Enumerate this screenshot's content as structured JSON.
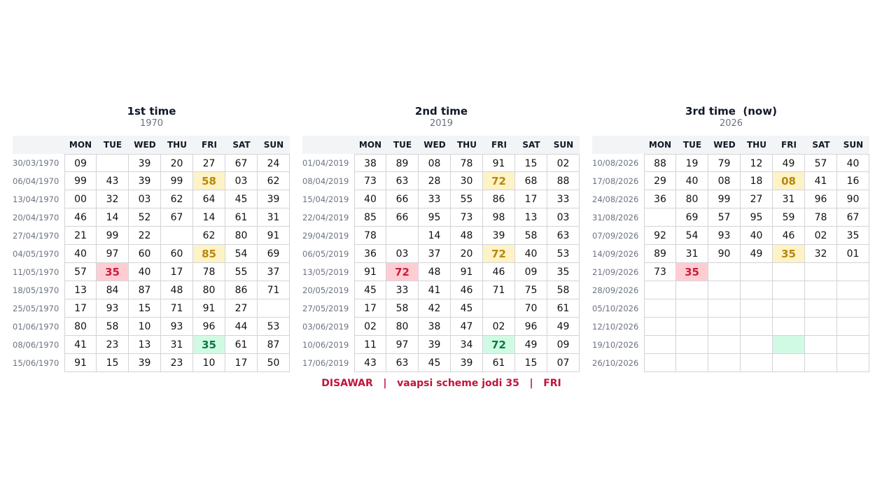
{
  "days": [
    "MON",
    "TUE",
    "WED",
    "THU",
    "FRI",
    "SAT",
    "SUN"
  ],
  "tables": [
    {
      "title": "1st time",
      "subtitle": "1970",
      "rows": [
        {
          "date": "30/03/1970",
          "cells": [
            "09",
            null,
            "39",
            "20",
            "27",
            "67",
            "24"
          ]
        },
        {
          "date": "06/04/1970",
          "cells": [
            "99",
            "43",
            "39",
            "99",
            {
              "text": "58",
              "highlight": "yellow"
            },
            "03",
            "62"
          ]
        },
        {
          "date": "13/04/1970",
          "cells": [
            "00",
            "32",
            "03",
            "62",
            "64",
            "45",
            "39"
          ]
        },
        {
          "date": "20/04/1970",
          "cells": [
            "46",
            "14",
            "52",
            "67",
            "14",
            "61",
            "31"
          ]
        },
        {
          "date": "27/04/1970",
          "cells": [
            "21",
            "99",
            "22",
            null,
            "62",
            "80",
            "91"
          ]
        },
        {
          "date": "04/05/1970",
          "cells": [
            "40",
            "97",
            "60",
            "60",
            {
              "text": "85",
              "highlight": "yellow"
            },
            "54",
            "69"
          ]
        },
        {
          "date": "11/05/1970",
          "cells": [
            "57",
            {
              "text": "35",
              "highlight": "red"
            },
            "40",
            "17",
            "78",
            "55",
            "37"
          ]
        },
        {
          "date": "18/05/1970",
          "cells": [
            "13",
            "84",
            "87",
            "48",
            "80",
            "86",
            "71"
          ]
        },
        {
          "date": "25/05/1970",
          "cells": [
            "17",
            "93",
            "15",
            "71",
            "91",
            "27",
            null
          ]
        },
        {
          "date": "01/06/1970",
          "cells": [
            "80",
            "58",
            "10",
            "93",
            "96",
            "44",
            "53"
          ]
        },
        {
          "date": "08/06/1970",
          "cells": [
            "41",
            "23",
            "13",
            "31",
            {
              "text": "35",
              "highlight": "green"
            },
            "61",
            "87"
          ]
        },
        {
          "date": "15/06/1970",
          "cells": [
            "91",
            "15",
            "39",
            "23",
            "10",
            "17",
            "50"
          ]
        }
      ]
    },
    {
      "title": "2nd time",
      "subtitle": "2019",
      "rows": [
        {
          "date": "01/04/2019",
          "cells": [
            "38",
            "89",
            "08",
            "78",
            "91",
            "15",
            "02"
          ]
        },
        {
          "date": "08/04/2019",
          "cells": [
            "73",
            "63",
            "28",
            "30",
            {
              "text": "72",
              "highlight": "yellow"
            },
            "68",
            "88"
          ]
        },
        {
          "date": "15/04/2019",
          "cells": [
            "40",
            "66",
            "33",
            "55",
            "86",
            "17",
            "33"
          ]
        },
        {
          "date": "22/04/2019",
          "cells": [
            "85",
            "66",
            "95",
            "73",
            "98",
            "13",
            "03"
          ]
        },
        {
          "date": "29/04/2019",
          "cells": [
            "78",
            null,
            "14",
            "48",
            "39",
            "58",
            "63"
          ]
        },
        {
          "date": "06/05/2019",
          "cells": [
            "36",
            "03",
            "37",
            "20",
            {
              "text": "72",
              "highlight": "yellow"
            },
            "40",
            "53"
          ]
        },
        {
          "date": "13/05/2019",
          "cells": [
            "91",
            {
              "text": "72",
              "highlight": "red"
            },
            "48",
            "91",
            "46",
            "09",
            "35"
          ]
        },
        {
          "date": "20/05/2019",
          "cells": [
            "45",
            "33",
            "41",
            "46",
            "71",
            "75",
            "58"
          ]
        },
        {
          "date": "27/05/2019",
          "cells": [
            "17",
            "58",
            "42",
            "45",
            null,
            "70",
            "61"
          ]
        },
        {
          "date": "03/06/2019",
          "cells": [
            "02",
            "80",
            "38",
            "47",
            "02",
            "96",
            "49"
          ]
        },
        {
          "date": "10/06/2019",
          "cells": [
            "11",
            "97",
            "39",
            "34",
            {
              "text": "72",
              "highlight": "green"
            },
            "49",
            "09"
          ]
        },
        {
          "date": "17/06/2019",
          "cells": [
            "43",
            "63",
            "45",
            "39",
            "61",
            "15",
            "07"
          ]
        }
      ]
    },
    {
      "title": "3rd time  (now)",
      "subtitle": "2026",
      "rows": [
        {
          "date": "10/08/2026",
          "cells": [
            "88",
            "19",
            "79",
            "12",
            "49",
            "57",
            "40"
          ]
        },
        {
          "date": "17/08/2026",
          "cells": [
            "29",
            "40",
            "08",
            "18",
            {
              "text": "08",
              "highlight": "yellow"
            },
            "41",
            "16"
          ]
        },
        {
          "date": "24/08/2026",
          "cells": [
            "36",
            "80",
            "99",
            "27",
            "31",
            "96",
            "90"
          ]
        },
        {
          "date": "31/08/2026",
          "cells": [
            null,
            "69",
            "57",
            "95",
            "59",
            "78",
            "67"
          ]
        },
        {
          "date": "07/09/2026",
          "cells": [
            "92",
            "54",
            "93",
            "40",
            "46",
            "02",
            "35"
          ]
        },
        {
          "date": "14/09/2026",
          "cells": [
            "89",
            "31",
            "90",
            "49",
            {
              "text": "35",
              "highlight": "yellow"
            },
            "32",
            "01"
          ]
        },
        {
          "date": "21/09/2026",
          "cells": [
            "73",
            {
              "text": "35",
              "highlight": "red"
            },
            null,
            null,
            null,
            null,
            null
          ]
        },
        {
          "date": "28/09/2026",
          "cells": [
            null,
            null,
            null,
            null,
            null,
            null,
            null
          ]
        },
        {
          "date": "05/10/2026",
          "cells": [
            null,
            null,
            null,
            null,
            null,
            null,
            null
          ]
        },
        {
          "date": "12/10/2026",
          "cells": [
            null,
            null,
            null,
            null,
            null,
            null,
            null
          ]
        },
        {
          "date": "19/10/2026",
          "cells": [
            null,
            null,
            null,
            null,
            {
              "text": null,
              "highlight": "green"
            },
            null,
            null
          ]
        },
        {
          "date": "26/10/2026",
          "cells": [
            null,
            null,
            null,
            null,
            null,
            null,
            null
          ]
        }
      ]
    }
  ],
  "footer": "DISAWAR   |   vaapsi scheme jodi 35   |   FRI"
}
